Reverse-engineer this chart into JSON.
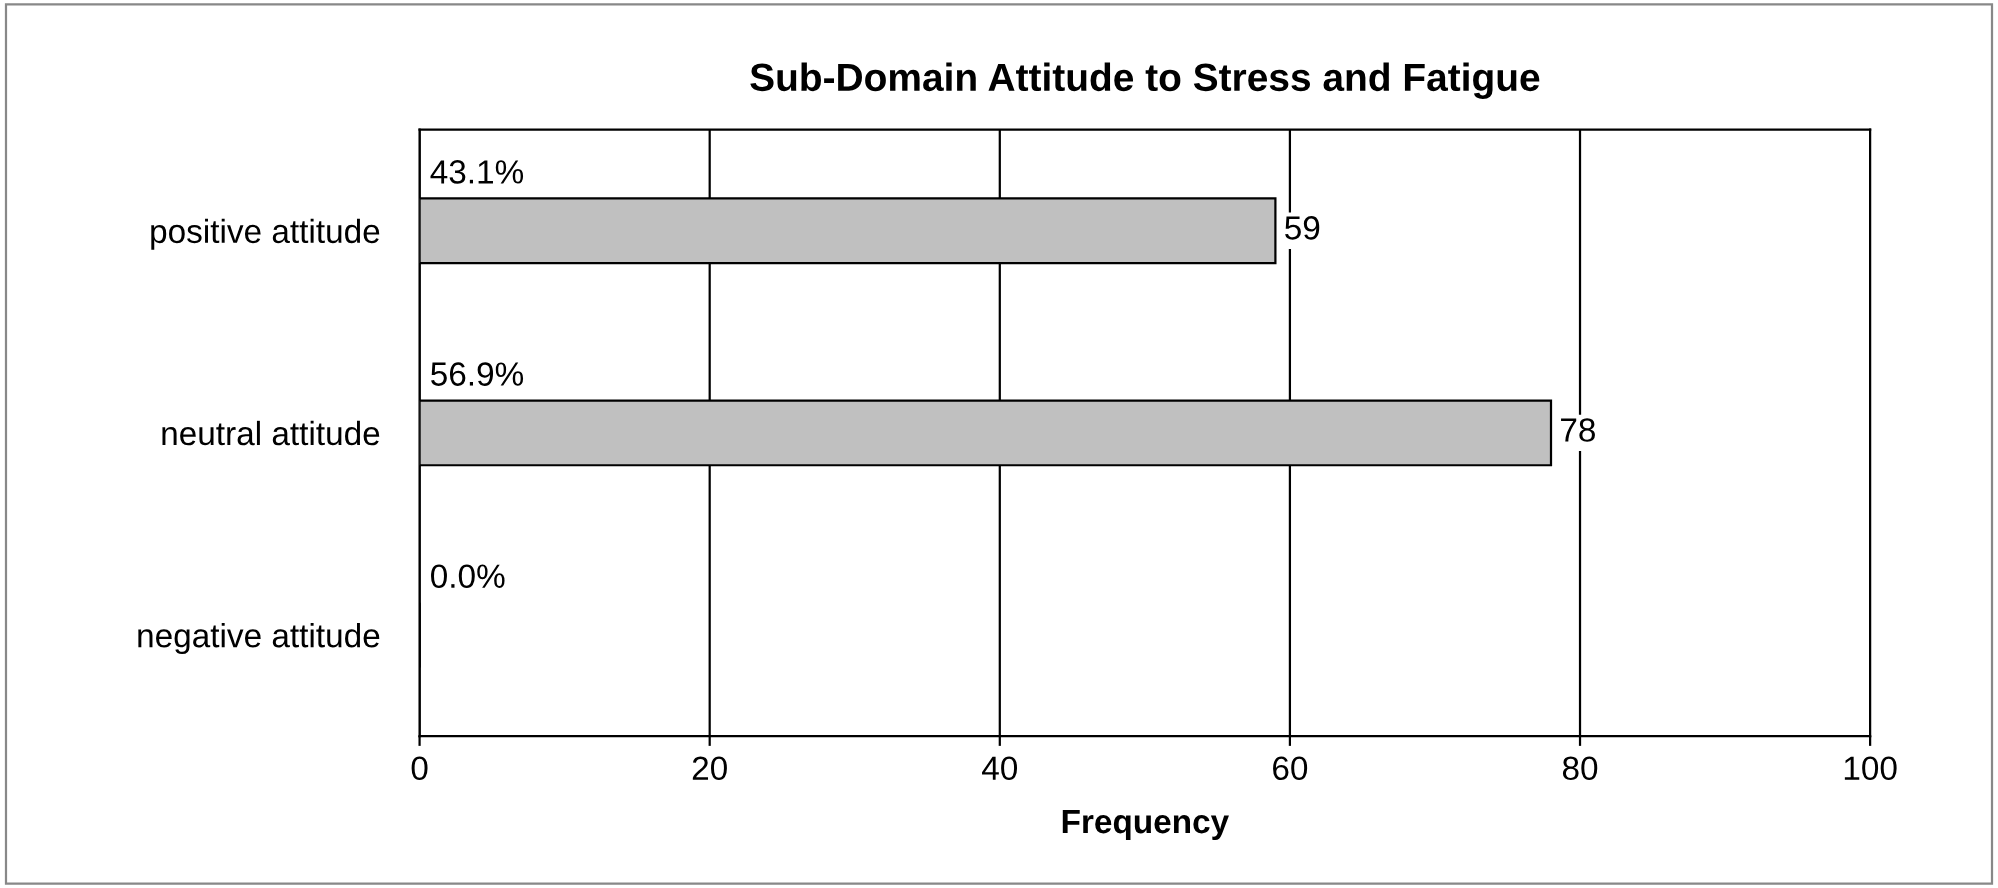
{
  "chart_data": {
    "type": "bar",
    "orientation": "horizontal",
    "title": "Sub-Domain Attitude to Stress and Fatigue",
    "xlabel": "Frequency",
    "categories": [
      "positive attitude",
      "neutral attitude",
      "negative attitude"
    ],
    "values": [
      59,
      78,
      0
    ],
    "value_labels": [
      "59",
      "78",
      null
    ],
    "color": "#c0c0c0",
    "xlim": [
      0,
      100
    ],
    "xticks": [
      0,
      20,
      40,
      60,
      80,
      100
    ],
    "grid": "x",
    "legend": false,
    "annotations": [
      "43.1%",
      "56.9%",
      "0.0%"
    ]
  }
}
